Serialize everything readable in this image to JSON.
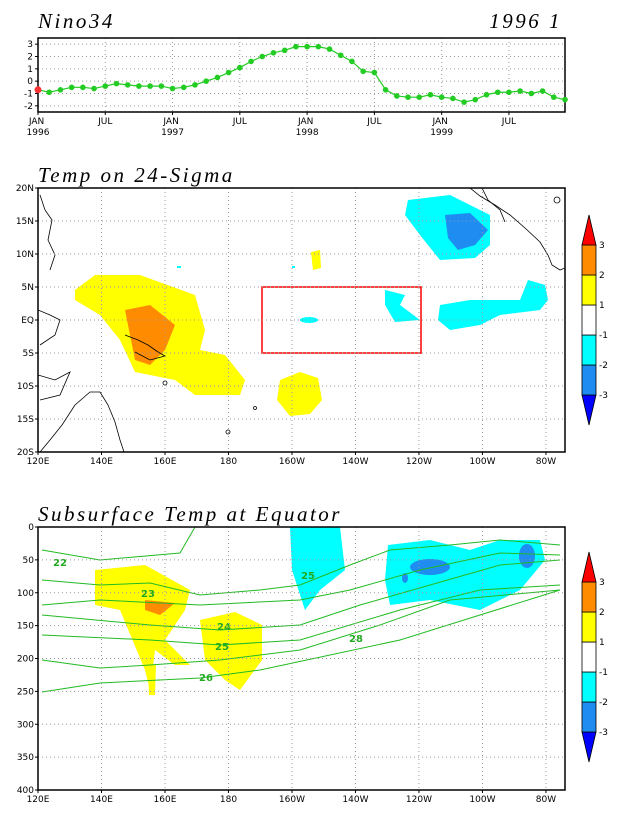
{
  "chart_data": [
    {
      "type": "line",
      "title": "Nino34",
      "subtitle": "1996 1",
      "x": [
        "1996-01",
        "1996-02",
        "1996-03",
        "1996-04",
        "1996-05",
        "1996-06",
        "1996-07",
        "1996-08",
        "1996-09",
        "1996-10",
        "1996-11",
        "1996-12",
        "1997-01",
        "1997-02",
        "1997-03",
        "1997-04",
        "1997-05",
        "1997-06",
        "1997-07",
        "1997-08",
        "1997-09",
        "1997-10",
        "1997-11",
        "1997-12",
        "1998-01",
        "1998-02",
        "1998-03",
        "1998-04",
        "1998-05",
        "1998-06",
        "1998-07",
        "1998-08",
        "1998-09",
        "1998-10",
        "1998-11",
        "1998-12",
        "1999-01",
        "1999-02",
        "1999-03",
        "1999-04",
        "1999-05",
        "1999-06",
        "1999-07",
        "1999-08",
        "1999-09",
        "1999-10",
        "1999-11",
        "1999-12"
      ],
      "series": [
        {
          "color": "#22cc22",
          "values": [
            -0.7,
            -0.9,
            -0.7,
            -0.5,
            -0.5,
            -0.6,
            -0.4,
            -0.2,
            -0.3,
            -0.4,
            -0.4,
            -0.4,
            -0.6,
            -0.5,
            -0.3,
            0.0,
            0.3,
            0.7,
            1.1,
            1.6,
            2.0,
            2.3,
            2.5,
            2.8,
            2.8,
            2.8,
            2.6,
            2.1,
            1.6,
            0.8,
            0.7,
            -0.7,
            -1.2,
            -1.3,
            -1.3,
            -1.1,
            -1.3,
            -1.4,
            -1.7,
            -1.5,
            -1.1,
            -0.9,
            -0.9,
            -0.8,
            -1.0,
            -0.8,
            -1.3,
            -1.5
          ]
        }
      ],
      "highlight": {
        "index": 0,
        "color": "#ff3333"
      },
      "xlim": [
        "1996-01",
        "1999-12"
      ],
      "xticks": [
        {
          "value": "1996-01",
          "label": "JAN 1996"
        },
        {
          "value": "1996-07",
          "label": "JUL"
        },
        {
          "value": "1997-01",
          "label": "JAN 1997"
        },
        {
          "value": "1997-07",
          "label": "JUL"
        },
        {
          "value": "1998-01",
          "label": "JAN 1998"
        },
        {
          "value": "1998-07",
          "label": "JUL"
        },
        {
          "value": "1999-01",
          "label": "JAN 1999"
        },
        {
          "value": "1999-07",
          "label": "JUL"
        }
      ],
      "ylim": [
        -2.5,
        3.5
      ],
      "yticks": [
        -2,
        -1,
        0,
        1,
        2,
        3
      ],
      "grid": true
    },
    {
      "type": "map",
      "title": "Temp on 24-Sigma",
      "xlim": [
        120,
        286
      ],
      "xticks": [
        {
          "value": 120,
          "label": "120E"
        },
        {
          "value": 140,
          "label": "140E"
        },
        {
          "value": 160,
          "label": "160E"
        },
        180,
        {
          "value": 200,
          "label": "160W"
        },
        {
          "value": 220,
          "label": "140W"
        },
        {
          "value": 240,
          "label": "120W"
        },
        {
          "value": 260,
          "label": "100W"
        },
        {
          "value": 280,
          "label": "80W"
        }
      ],
      "ylim": [
        -20,
        20
      ],
      "yticks": [
        {
          "value": -20,
          "label": "20S"
        },
        {
          "value": -15,
          "label": "15S"
        },
        {
          "value": -10,
          "label": "10S"
        },
        {
          "value": -5,
          "label": "5S"
        },
        {
          "value": 0,
          "label": "EQ"
        },
        {
          "value": 5,
          "label": "5N"
        },
        {
          "value": 10,
          "label": "10N"
        },
        {
          "value": 15,
          "label": "15N"
        },
        {
          "value": 20,
          "label": "20N"
        }
      ],
      "grid": true,
      "colorbar": {
        "levels": [
          -3,
          -2,
          -1,
          1,
          2,
          3
        ],
        "colors": [
          "#0000ff",
          "#1e8cf0",
          "#00ffff",
          "#ffffff",
          "#ffff00",
          "#ff8c00",
          "#ff0000"
        ]
      }
    },
    {
      "type": "contour",
      "title": "Subsurface Temp at Equator",
      "xlim": [
        120,
        286
      ],
      "xticks": [
        {
          "value": 120,
          "label": "120E"
        },
        {
          "value": 140,
          "label": "140E"
        },
        {
          "value": 160,
          "label": "160E"
        },
        180,
        {
          "value": 200,
          "label": "160W"
        },
        {
          "value": 220,
          "label": "140W"
        },
        {
          "value": 240,
          "label": "120W"
        },
        {
          "value": 260,
          "label": "100W"
        },
        {
          "value": 280,
          "label": "80W"
        }
      ],
      "ylim": [
        0,
        400
      ],
      "y_reversed": true,
      "yticks": [
        0,
        50,
        100,
        150,
        200,
        250,
        300,
        350,
        400
      ],
      "grid": true,
      "contour_labels": [
        22,
        23,
        24,
        25,
        26,
        25,
        28
      ],
      "colorbar": {
        "levels": [
          -3,
          -2,
          -1,
          1,
          2,
          3
        ],
        "colors": [
          "#0000ff",
          "#1e8cf0",
          "#00ffff",
          "#ffffff",
          "#ffff00",
          "#ff8c00",
          "#ff0000"
        ]
      }
    }
  ]
}
